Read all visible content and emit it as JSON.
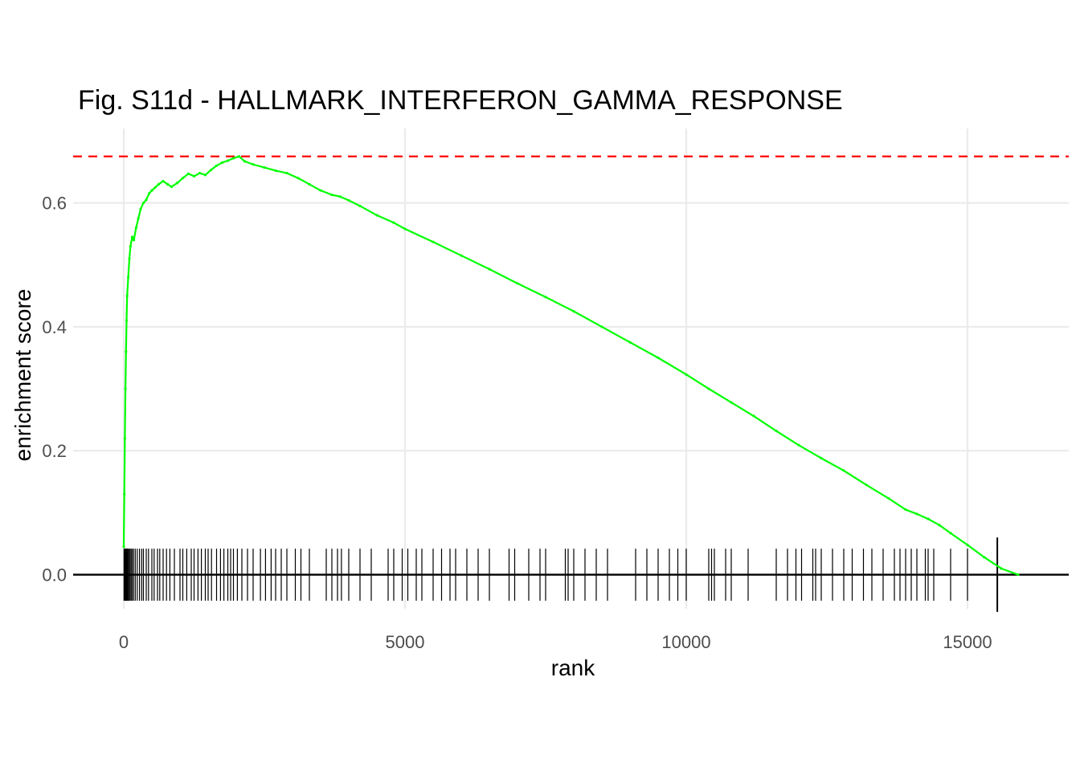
{
  "chart_data": {
    "type": "line",
    "title": "Fig. S11d - HALLMARK_INTERFERON_GAMMA_RESPONSE",
    "xlabel": "rank",
    "ylabel": "enrichment score",
    "xlim": [
      -900,
      16800
    ],
    "ylim": [
      -0.055,
      0.72
    ],
    "x_ticks": [
      0,
      5000,
      10000,
      15000
    ],
    "x_tick_labels": [
      "0",
      "5000",
      "10000",
      "15000"
    ],
    "y_ticks": [
      0.0,
      0.2,
      0.4,
      0.6
    ],
    "y_tick_labels": [
      "0.0",
      "0.2",
      "0.4",
      "0.6"
    ],
    "grid": true,
    "max_es": 0.675,
    "colors": {
      "curve": "#00ff00",
      "max_line": "#ff0000",
      "ticks": "#000000",
      "zero_line": "#000000"
    },
    "series": [
      {
        "x": [
          0,
          10,
          20,
          30,
          40,
          50,
          60,
          80,
          100,
          120,
          150,
          180,
          220,
          260,
          300,
          350,
          400,
          450,
          500,
          560,
          620,
          700,
          780,
          850,
          950,
          1050,
          1150,
          1250,
          1350,
          1450,
          1550,
          1650,
          1750,
          1850,
          1950,
          2050,
          2150,
          2300,
          2500,
          2700,
          2900,
          3100,
          3300,
          3500,
          3700,
          3850,
          4000,
          4200,
          4500,
          4800,
          5000,
          5500,
          6000,
          6500,
          7000,
          7500,
          8000,
          8500,
          9000,
          9500,
          10000,
          10400,
          10800,
          11200,
          11600,
          12000,
          12400,
          12800,
          13200,
          13600,
          13900,
          14100,
          14300,
          14500,
          14700,
          15000,
          15300,
          15600,
          15900
        ],
        "y": [
          0.045,
          0.13,
          0.22,
          0.3,
          0.36,
          0.41,
          0.45,
          0.48,
          0.51,
          0.53,
          0.545,
          0.54,
          0.56,
          0.575,
          0.59,
          0.6,
          0.605,
          0.615,
          0.62,
          0.625,
          0.63,
          0.635,
          0.63,
          0.626,
          0.632,
          0.64,
          0.647,
          0.643,
          0.648,
          0.645,
          0.653,
          0.66,
          0.665,
          0.668,
          0.672,
          0.675,
          0.667,
          0.662,
          0.657,
          0.652,
          0.648,
          0.64,
          0.63,
          0.62,
          0.613,
          0.61,
          0.604,
          0.595,
          0.58,
          0.568,
          0.558,
          0.537,
          0.515,
          0.493,
          0.47,
          0.448,
          0.425,
          0.4,
          0.375,
          0.35,
          0.323,
          0.3,
          0.278,
          0.256,
          0.232,
          0.209,
          0.188,
          0.168,
          0.145,
          0.123,
          0.105,
          0.098,
          0.09,
          0.08,
          0.067,
          0.048,
          0.028,
          0.01,
          0.0
        ]
      }
    ],
    "hits": [
      5,
      15,
      25,
      35,
      45,
      55,
      65,
      75,
      90,
      110,
      130,
      150,
      175,
      205,
      240,
      280,
      320,
      350,
      400,
      440,
      500,
      540,
      600,
      640,
      700,
      760,
      820,
      900,
      1000,
      1050,
      1120,
      1200,
      1250,
      1320,
      1380,
      1450,
      1500,
      1560,
      1650,
      1720,
      1780,
      1850,
      1900,
      1950,
      2020,
      2100,
      2200,
      2300,
      2430,
      2520,
      2620,
      2700,
      2800,
      2900,
      3050,
      3150,
      3300,
      3600,
      3700,
      3800,
      3870,
      4000,
      4200,
      4400,
      4700,
      4800,
      4950,
      5050,
      5200,
      5300,
      5500,
      5650,
      5800,
      5900,
      6100,
      6300,
      6500,
      6850,
      6950,
      7200,
      7400,
      7500,
      7850,
      7900,
      8000,
      8200,
      8400,
      8600,
      9100,
      9300,
      9500,
      9700,
      9850,
      10000,
      10400,
      10450,
      10500,
      10700,
      10800,
      11100,
      11600,
      11800,
      11950,
      12050,
      12250,
      12300,
      12400,
      12600,
      12800,
      12950,
      13150,
      13300,
      13500,
      13700,
      13800,
      13900,
      14000,
      14100,
      14250,
      14300,
      14400,
      14700,
      15000,
      15530
    ]
  }
}
